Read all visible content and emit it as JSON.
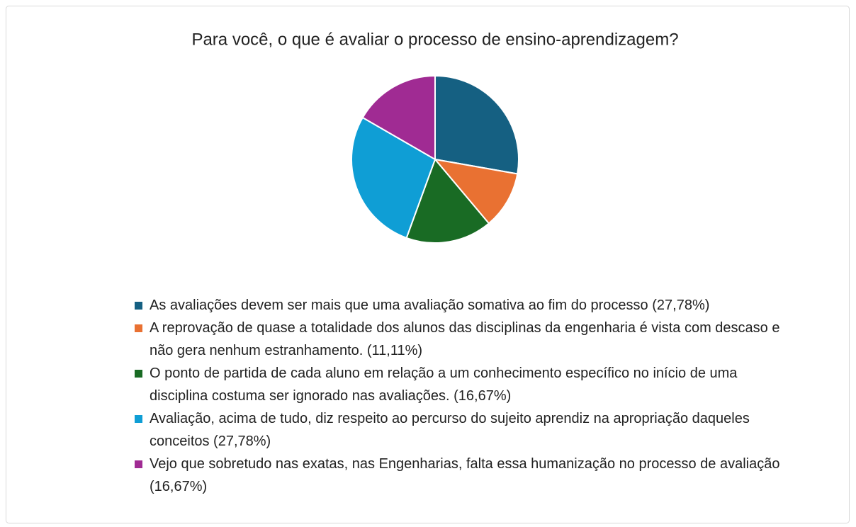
{
  "chart_data": {
    "type": "pie",
    "title": "Para você, o que é avaliar o processo de ensino-aprendizagem?",
    "categories": [
      "As avaliações devem ser mais que uma avaliação somativa ao fim do processo (27,78%)",
      "A reprovação de quase a totalidade dos alunos das disciplinas da engenharia é vista com descaso e não gera nenhum estranhamento. (11,11%)",
      "O ponto de partida de cada aluno em relação a um conhecimento específico no início de uma disciplina costuma ser ignorado nas avaliações. (16,67%)",
      "Avaliação, acima de tudo, diz respeito ao percurso do sujeito aprendiz na apropriação daqueles conceitos (27,78%)",
      "Vejo que sobretudo nas exatas, nas Engenharias, falta essa humanização no processo de avaliação (16,67%)"
    ],
    "values": [
      27.78,
      11.11,
      16.67,
      27.78,
      16.67
    ],
    "colors": [
      "#156082",
      "#e97132",
      "#196b24",
      "#0f9ed5",
      "#a02b93"
    ]
  }
}
